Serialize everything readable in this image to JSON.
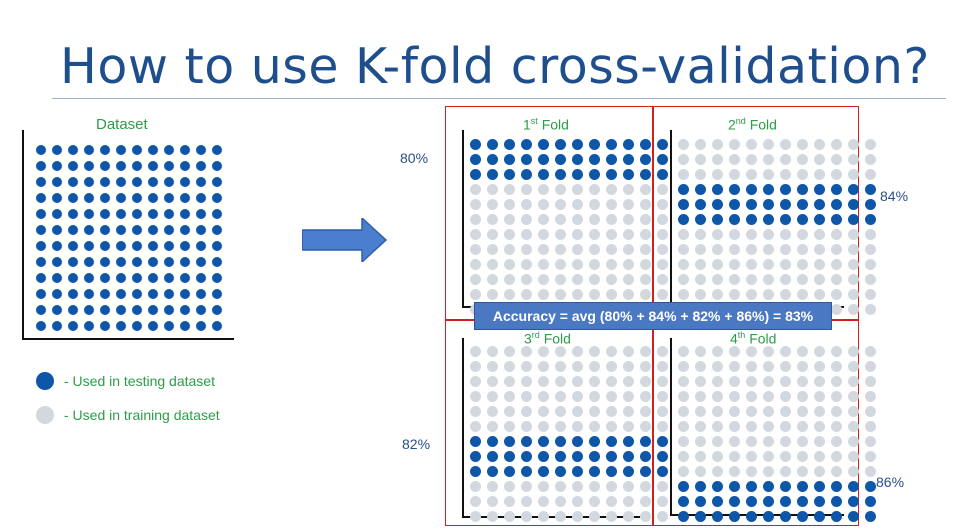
{
  "title": "How to use K-fold cross-validation?",
  "dataset": {
    "label": "Dataset",
    "rows": 12,
    "cols": 12
  },
  "colors": {
    "test": "#0d56a8",
    "train": "#d3d8df",
    "frame": "#d02020",
    "accent": "#4a78c2"
  },
  "folds": [
    {
      "ordinal": "1",
      "suffix": "st",
      "word": "Fold",
      "accuracy": "80%",
      "test_rows": [
        0,
        1,
        2
      ]
    },
    {
      "ordinal": "2",
      "suffix": "nd",
      "word": "Fold",
      "accuracy": "84%",
      "test_rows": [
        3,
        4,
        5
      ]
    },
    {
      "ordinal": "3",
      "suffix": "rd",
      "word": "Fold",
      "accuracy": "82%",
      "test_rows": [
        6,
        7,
        8
      ]
    },
    {
      "ordinal": "4",
      "suffix": "th",
      "word": "Fold",
      "accuracy": "86%",
      "test_rows": [
        9,
        10,
        11
      ]
    }
  ],
  "fold_grid": {
    "rows": 12,
    "cols": 12
  },
  "accuracy_banner": "Accuracy = avg (80% + 84% + 82% + 86%) = 83%",
  "legend": {
    "test_label": "- Used in testing dataset",
    "train_label": "- Used in training dataset"
  }
}
